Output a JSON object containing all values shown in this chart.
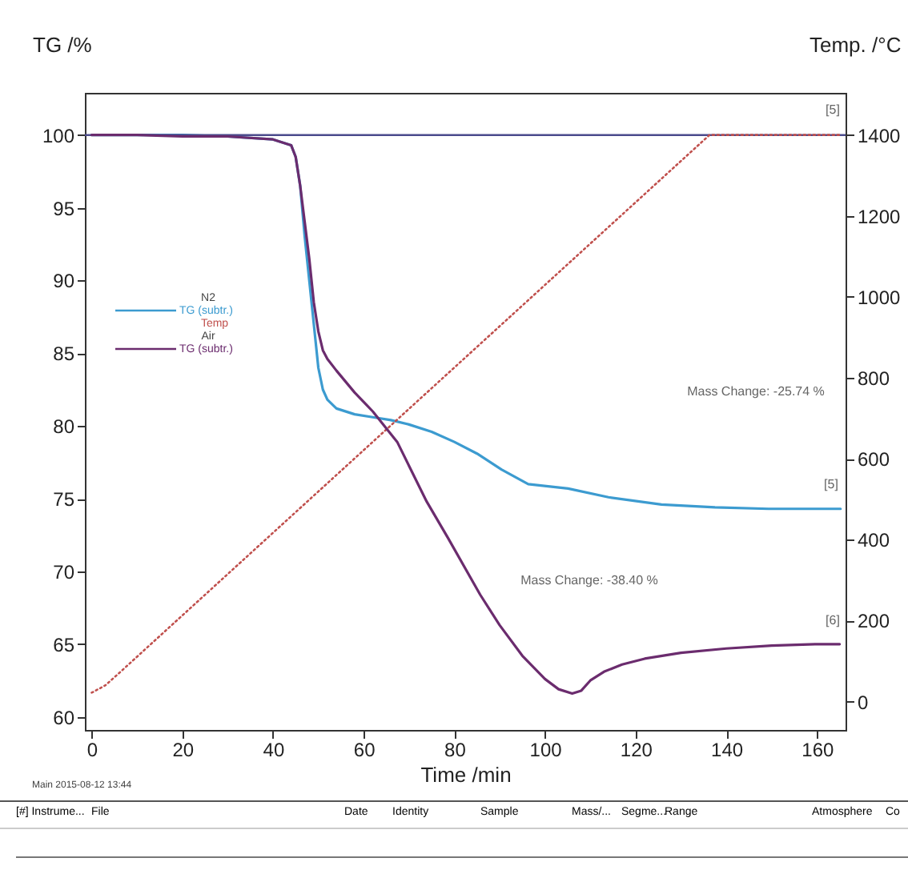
{
  "chart_data": {
    "type": "line",
    "xlabel": "Time /min",
    "ylabel": "TG /%",
    "y2label": "Temp. /°C",
    "xlim": [
      -1.5,
      166.3
    ],
    "xticks": [
      0,
      20,
      40,
      60,
      80,
      100,
      120,
      140,
      160
    ],
    "ylim": [
      59.1,
      102.9
    ],
    "yticks": [
      60,
      65,
      70,
      75,
      80,
      85,
      90,
      95,
      100
    ],
    "y2lim": [
      -70,
      1504
    ],
    "y2ticks": [
      0,
      200,
      400,
      600,
      800,
      1000,
      1200,
      1400
    ],
    "legend": "left",
    "grid": false,
    "marker": "none",
    "ref_lines": [
      {
        "axis": "y",
        "value": 100,
        "color": "#4b4b8c"
      }
    ],
    "series": [
      {
        "name": "TG (subtr.)",
        "color": "#3c9bd0",
        "line_style": "solid",
        "x": [
          0,
          10,
          20,
          30,
          40,
          44,
          45,
          46,
          47,
          48,
          49,
          50,
          51,
          52,
          54,
          58,
          62,
          66,
          70,
          75,
          80,
          85,
          90.4,
          96.3,
          105.1,
          114,
          125.7,
          137.5,
          149.3,
          165.2
        ],
        "values": [
          100,
          100,
          100,
          99.9,
          99.7,
          99.3,
          98.5,
          96.5,
          93,
          90,
          87,
          84,
          82.5,
          81.8,
          81.2,
          80.8,
          80.6,
          80.4,
          80.1,
          79.6,
          78.9,
          78.1,
          77,
          76,
          75.7,
          75.1,
          74.6,
          74.4,
          74.3,
          74.3
        ]
      },
      {
        "name": "Temp",
        "color": "#c0504d",
        "line_style": "dotted",
        "axis": "y2",
        "x": [
          0,
          3,
          6,
          136.3,
          165
        ],
        "values": [
          22,
          40,
          70,
          1400,
          1400
        ]
      },
      {
        "name": "TG (subtr.)",
        "color": "#6b2c6e",
        "line_style": "solid",
        "x": [
          0,
          10,
          20,
          30,
          40,
          44,
          45,
          46,
          47,
          48,
          49,
          50,
          51,
          52,
          54,
          58,
          62,
          67.4,
          73.9,
          78.6,
          85.7,
          90,
          95,
          100,
          103,
          106,
          108,
          110,
          113,
          117,
          122,
          130,
          140,
          150,
          160,
          165
        ],
        "values": [
          100,
          100,
          99.9,
          99.9,
          99.7,
          99.3,
          98.5,
          96.5,
          94,
          91.5,
          88.5,
          86.5,
          85.2,
          84.6,
          83.8,
          82.3,
          81,
          78.9,
          74.8,
          72.3,
          68.4,
          66.3,
          64.2,
          62.6,
          61.9,
          61.6,
          61.8,
          62.5,
          63.1,
          63.6,
          64,
          64.4,
          64.7,
          64.9,
          65,
          65
        ]
      }
    ],
    "annotations": [
      "N2",
      "Air",
      "Main   2015-08-12 13:44",
      "[#] Instrume...",
      "File",
      "Date",
      "Identity",
      "Sample",
      "Mass/...",
      "Segme...",
      "Range",
      "Atmosphere",
      "Co",
      "Mass Change: -25.74 %",
      "Mass Change: -38.40 %",
      "[5]",
      "[5]",
      "[6]"
    ]
  }
}
